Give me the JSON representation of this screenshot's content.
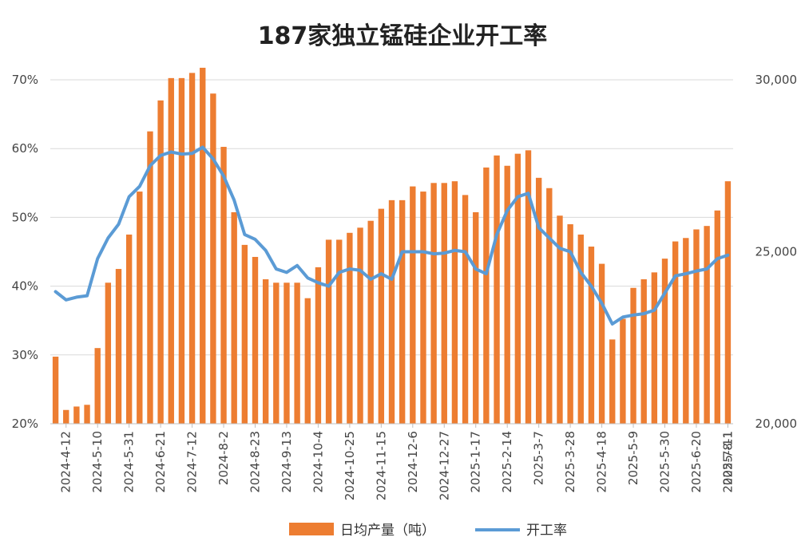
{
  "chart_data": {
    "type": "bar+line",
    "title": "187家独立锰硅企业开工率",
    "x_tick_labels": [
      "2024-4-12",
      "2024-5-10",
      "2024-5-31",
      "2024-6-21",
      "2024-7-12",
      "2024-8-2",
      "2024-8-23",
      "2024-9-13",
      "2024-10-4",
      "2024-10-25",
      "2024-11-15",
      "2024-12-6",
      "2024-12-27",
      "2025-1-17",
      "2025-2-14",
      "2025-3-7",
      "2025-3-28",
      "2025-4-18",
      "2025-5-9",
      "2025-5-30",
      "2025-6-20",
      "2025-7-11",
      "2025-8-1"
    ],
    "left_axis": {
      "range": [
        20,
        70
      ],
      "ticks": [
        "20%",
        "30%",
        "40%",
        "50%",
        "60%",
        "70%"
      ]
    },
    "right_axis": {
      "range": [
        20000,
        30000
      ],
      "ticks": [
        "20,000",
        "25,000",
        "30,000"
      ]
    },
    "grid": true,
    "legend_position": "bottom",
    "series": [
      {
        "name": "日均产量（吨）",
        "type": "bar",
        "axis": "right",
        "color": "#ED7D31",
        "values": [
          21950,
          20400,
          20500,
          20550,
          22200,
          24100,
          24500,
          25500,
          26750,
          28500,
          29400,
          30050,
          30050,
          30200,
          30350,
          29600,
          28050,
          26150,
          25200,
          24850,
          24200,
          24100,
          24100,
          24100,
          23650,
          24550,
          25350,
          25350,
          25550,
          25700,
          25900,
          26250,
          26500,
          26500,
          26900,
          26750,
          27000,
          27000,
          27050,
          26650,
          26150,
          27450,
          27800,
          27500,
          27850,
          27950,
          27150,
          26850,
          26050,
          25800,
          25500,
          25150,
          24650,
          22450,
          23050,
          23950,
          24200,
          24400,
          24800,
          25300,
          25400,
          25650,
          25750,
          26200,
          27050
        ]
      },
      {
        "name": "开工率",
        "type": "line",
        "axis": "left",
        "color": "#5B9BD5",
        "values": [
          39.2,
          38.0,
          38.4,
          38.6,
          44.0,
          47.0,
          49.0,
          53.0,
          54.5,
          57.5,
          59.0,
          59.5,
          59.2,
          59.3,
          60.2,
          58.5,
          56.0,
          52.5,
          47.5,
          46.8,
          45.2,
          42.5,
          42.0,
          43.0,
          41.2,
          40.5,
          40.0,
          42.0,
          42.5,
          42.3,
          41.0,
          41.8,
          41.0,
          45.0,
          45.0,
          45.0,
          44.7,
          44.8,
          45.2,
          45.0,
          42.5,
          41.8,
          47.5,
          51.0,
          53.0,
          53.5,
          48.5,
          47.0,
          45.5,
          45.0,
          42.0,
          40.0,
          37.5,
          34.5,
          35.5,
          35.8,
          36.0,
          36.5,
          39.0,
          41.5,
          41.8,
          42.2,
          42.5,
          44.0,
          44.5
        ]
      }
    ]
  }
}
